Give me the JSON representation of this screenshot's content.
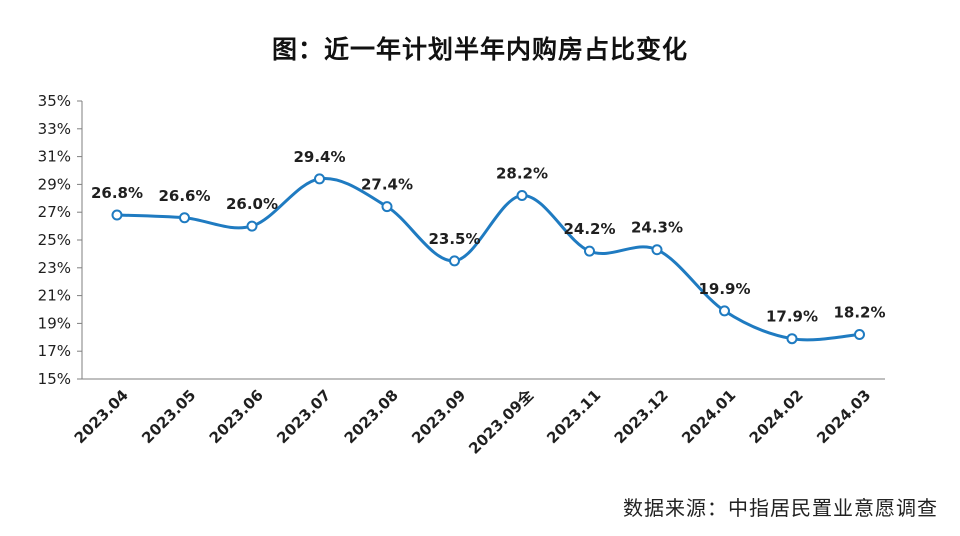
{
  "chart_data": {
    "type": "line",
    "title": "图：近一年计划半年内购房占比变化",
    "source": "数据来源：中指居民置业意愿调查",
    "categories": [
      "2023.04",
      "2023.05",
      "2023.06",
      "2023.07",
      "2023.08",
      "2023.09",
      "2023.09全",
      "2023.11",
      "2023.12",
      "2024.01",
      "2024.02",
      "2024.03"
    ],
    "values": [
      26.8,
      26.6,
      26.0,
      29.4,
      27.4,
      23.5,
      28.2,
      24.2,
      24.3,
      19.9,
      17.9,
      18.2
    ],
    "data_labels": [
      "26.8%",
      "26.6%",
      "26.0%",
      "29.4%",
      "27.4%",
      "23.5%",
      "28.2%",
      "24.2%",
      "24.3%",
      "19.9%",
      "17.9%",
      "18.2%"
    ],
    "yticks": [
      "35%",
      "33%",
      "31%",
      "29%",
      "27%",
      "25%",
      "23%",
      "21%",
      "19%",
      "17%",
      "15%"
    ],
    "ylim": [
      15,
      35
    ],
    "ystep": 2,
    "grid": false,
    "line_color": "#1f7bc1"
  }
}
